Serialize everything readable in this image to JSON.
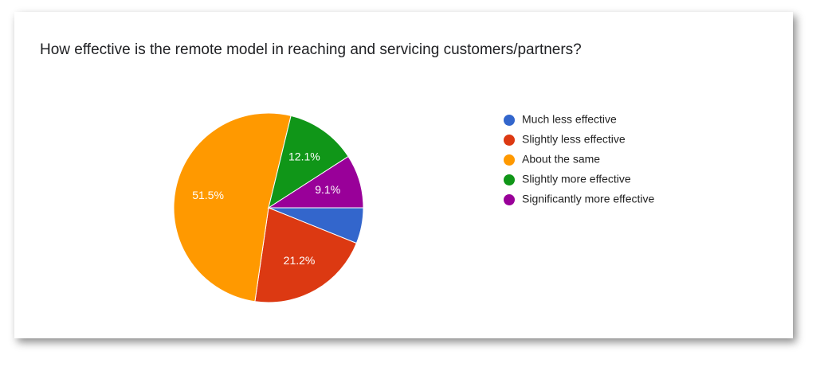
{
  "chart_data": {
    "type": "pie",
    "title": "How effective is the remote model in reaching and servicing customers/partners?",
    "categories": [
      "Much less effective",
      "Slightly less effective",
      "About the same",
      "Slightly more effective",
      "Significantly more effective"
    ],
    "values": [
      6.1,
      21.2,
      51.5,
      12.1,
      9.1
    ],
    "value_labels": [
      null,
      "21.2%",
      "51.5%",
      "12.1%",
      "9.1%"
    ],
    "colors": [
      "#3366cc",
      "#dc3912",
      "#ff9900",
      "#109618",
      "#990099"
    ],
    "legend": "right"
  }
}
